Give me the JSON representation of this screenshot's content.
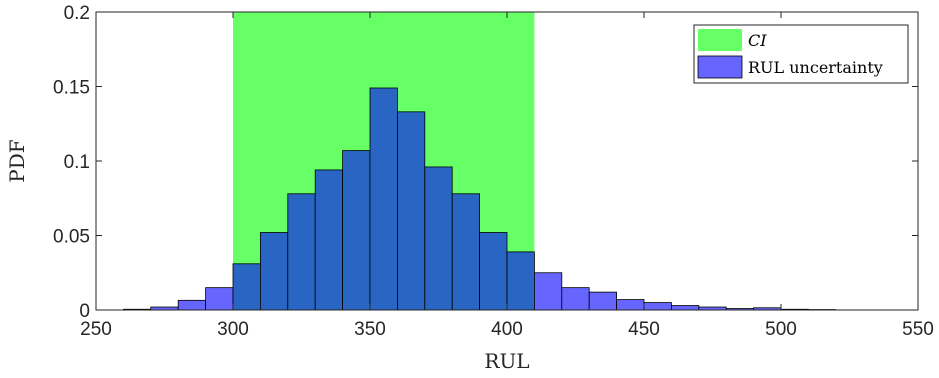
{
  "chart_data": {
    "type": "bar",
    "xlabel": "RUL",
    "ylabel": "PDF",
    "xlim": [
      250,
      550
    ],
    "ylim": [
      0,
      0.2
    ],
    "xticks": [
      250,
      300,
      350,
      400,
      450,
      500,
      550
    ],
    "yticks": [
      0,
      0.05,
      0.1,
      0.15,
      0.2
    ],
    "ytick_labels": [
      "0",
      "0.05",
      "0.1",
      "0.15",
      "0.2"
    ],
    "bin_width": 10,
    "bin_starts": [
      260,
      270,
      280,
      290,
      300,
      310,
      320,
      330,
      340,
      350,
      360,
      370,
      380,
      390,
      400,
      410,
      420,
      430,
      440,
      450,
      460,
      470,
      480,
      490,
      500,
      510
    ],
    "values": [
      0.0005,
      0.002,
      0.0065,
      0.015,
      0.031,
      0.052,
      0.078,
      0.094,
      0.107,
      0.149,
      0.133,
      0.096,
      0.078,
      0.052,
      0.039,
      0.025,
      0.015,
      0.012,
      0.007,
      0.005,
      0.003,
      0.002,
      0.001,
      0.0015,
      0.0005,
      0.0003
    ],
    "ci": [
      300,
      410
    ],
    "legend": [
      "CI",
      "RUL uncertainty"
    ],
    "legend_position": "top-right",
    "grid": false,
    "colors": {
      "ci": "#66ff66",
      "bar_outside_ci": "#6666ff",
      "bar_inside_ci": "#2966c4",
      "bar_edge": "#000000",
      "axis": "#262626"
    }
  }
}
